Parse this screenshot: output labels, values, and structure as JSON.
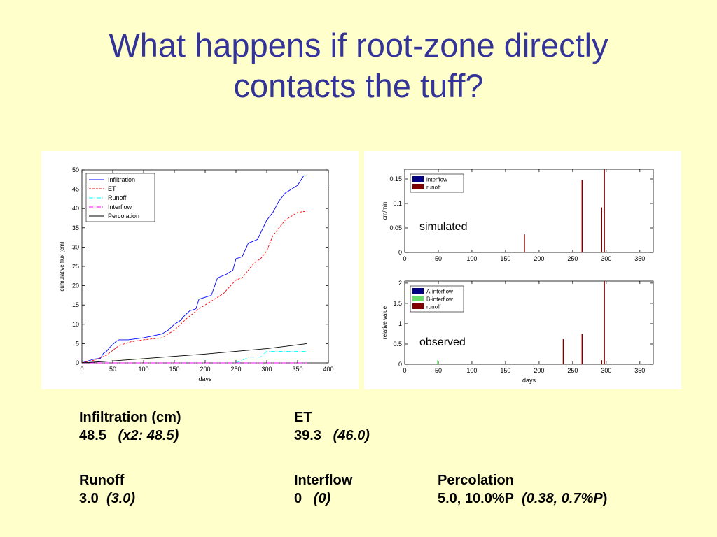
{
  "title_lines": [
    "What happens if root-zone directly",
    "contacts the tuff?"
  ],
  "stats": {
    "infiltration_label": "Infiltration (cm)",
    "infiltration_value": "48.5",
    "infiltration_paren": "(x2: 48.5)",
    "et_label": "ET",
    "et_value": "39.3",
    "et_paren": "(46.0)",
    "runoff_label": "Runoff",
    "runoff_value": "3.0",
    "runoff_paren": "(3.0)",
    "interflow_label": "Interflow",
    "interflow_value": "0",
    "interflow_paren": "(0)",
    "percolation_label": "Percolation",
    "percolation_value": "5.0, 10.0%P",
    "percolation_paren_a": "(0.38, 0.7%",
    "percolation_paren_b": "P",
    "percolation_paren_c": ")"
  },
  "chart_data": [
    {
      "type": "line",
      "xlabel": "days",
      "ylabel": "cumulative flux (cm)",
      "xlim": [
        0,
        400
      ],
      "ylim": [
        0,
        50
      ],
      "xticks": [
        0,
        50,
        100,
        150,
        200,
        250,
        300,
        350,
        400
      ],
      "yticks": [
        0,
        5,
        10,
        15,
        20,
        25,
        30,
        35,
        40,
        45,
        50
      ],
      "legend_position": "top-left",
      "series": [
        {
          "name": "Infiltration",
          "color": "#0000ff",
          "dash": "solid",
          "x": [
            0,
            10,
            20,
            30,
            35,
            40,
            45,
            55,
            60,
            65,
            75,
            100,
            130,
            135,
            140,
            150,
            160,
            165,
            175,
            185,
            190,
            200,
            210,
            220,
            235,
            245,
            250,
            260,
            270,
            285,
            300,
            310,
            320,
            330,
            340,
            350,
            360,
            365
          ],
          "y": [
            0,
            0.5,
            1,
            1.2,
            2.5,
            3,
            4,
            5.5,
            6,
            6,
            6,
            6.5,
            7.5,
            8,
            8.5,
            10,
            11,
            12,
            13.5,
            14,
            16.5,
            17,
            17.5,
            22,
            23,
            24,
            27,
            27.5,
            31,
            32,
            37,
            39,
            42,
            44,
            45,
            46,
            48.5,
            48.5
          ]
        },
        {
          "name": "ET",
          "color": "#ff0000",
          "dash": "dashed",
          "x": [
            0,
            20,
            40,
            60,
            80,
            100,
            130,
            150,
            170,
            190,
            210,
            230,
            250,
            260,
            270,
            280,
            290,
            300,
            310,
            320,
            330,
            340,
            350,
            360,
            365
          ],
          "y": [
            0,
            0.7,
            2,
            4.5,
            5.5,
            6,
            6.5,
            8.5,
            11.5,
            14,
            16,
            18,
            21.5,
            22,
            24,
            26,
            27,
            29,
            33,
            35,
            37,
            38,
            39,
            39.2,
            39.3
          ]
        },
        {
          "name": "Runoff",
          "color": "#00ffff",
          "dash": "dashdot",
          "x": [
            0,
            250,
            265,
            270,
            290,
            300,
            310,
            365
          ],
          "y": [
            0,
            0,
            1,
            1.5,
            1.5,
            3,
            3,
            3
          ]
        },
        {
          "name": "Interflow",
          "color": "#ff00ff",
          "dash": "dashdot",
          "x": [
            0,
            365
          ],
          "y": [
            0,
            0
          ]
        },
        {
          "name": "Percolation",
          "color": "#000000",
          "dash": "solid",
          "x": [
            0,
            50,
            100,
            150,
            200,
            250,
            300,
            330,
            365
          ],
          "y": [
            0,
            0.5,
            1.1,
            1.7,
            2.3,
            3,
            3.7,
            4.3,
            5
          ]
        }
      ]
    },
    {
      "type": "bar",
      "annotation": "simulated",
      "xlabel": "",
      "ylabel": "cm/min",
      "xlim": [
        0,
        370
      ],
      "ylim": [
        0,
        0.17
      ],
      "xticks": [
        0,
        50,
        100,
        150,
        200,
        250,
        300,
        350
      ],
      "yticks": [
        0,
        0.05,
        0.1,
        0.15
      ],
      "legend_position": "top-left",
      "series": [
        {
          "name": "interflow",
          "color": "#000080",
          "x": [],
          "y": []
        },
        {
          "name": "runoff",
          "color": "#800000",
          "x": [
            178,
            264,
            293,
            297
          ],
          "y": [
            0.037,
            0.148,
            0.092,
            0.17
          ]
        }
      ]
    },
    {
      "type": "bar",
      "annotation": "observed",
      "xlabel": "days",
      "ylabel": "relative value",
      "xlim": [
        0,
        370
      ],
      "ylim": [
        0,
        2.05
      ],
      "xticks": [
        0,
        50,
        100,
        150,
        200,
        250,
        300,
        350
      ],
      "yticks": [
        0,
        0.5,
        1,
        1.5,
        2
      ],
      "legend_position": "top-left",
      "series": [
        {
          "name": "A-interflow",
          "color": "#000080",
          "x": [],
          "y": []
        },
        {
          "name": "B-interflow",
          "color": "#66dd66",
          "x": [
            49
          ],
          "y": [
            0.1
          ]
        },
        {
          "name": "runoff",
          "color": "#800000",
          "x": [
            236,
            264,
            293,
            297
          ],
          "y": [
            0.62,
            0.75,
            0.1,
            2.05
          ]
        }
      ]
    }
  ]
}
